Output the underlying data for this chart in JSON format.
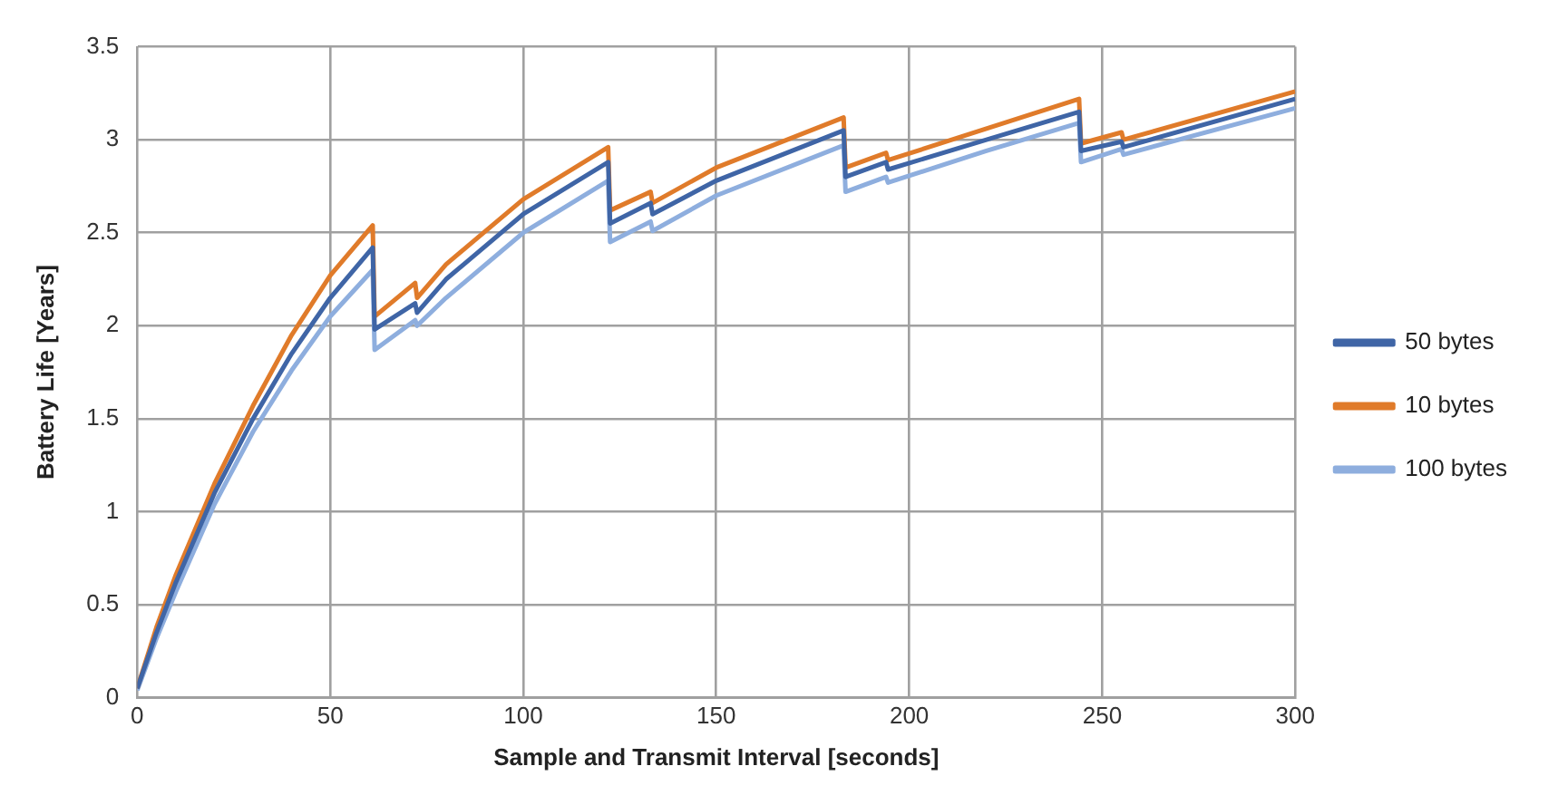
{
  "chart_data": {
    "type": "line",
    "xlabel": "Sample and Transmit Interval [seconds]",
    "ylabel": "Battery Life [Years]",
    "x": [
      0,
      5,
      10,
      20,
      30,
      40,
      50,
      61,
      61.5,
      72,
      72.5,
      80,
      100,
      122,
      122.5,
      133,
      133.5,
      150,
      183,
      183.5,
      194,
      194.5,
      220,
      244,
      244.5,
      255,
      255.5,
      300
    ],
    "series": [
      {
        "name": "50 bytes",
        "color": "#3f65a6",
        "values": [
          0.05,
          0.35,
          0.62,
          1.1,
          1.5,
          1.85,
          2.15,
          2.42,
          1.98,
          2.12,
          2.07,
          2.25,
          2.6,
          2.88,
          2.55,
          2.66,
          2.6,
          2.78,
          3.05,
          2.8,
          2.88,
          2.84,
          3.0,
          3.15,
          2.94,
          2.99,
          2.96,
          3.22
        ]
      },
      {
        "name": "10 bytes",
        "color": "#e07b2a",
        "values": [
          0.05,
          0.38,
          0.66,
          1.15,
          1.57,
          1.95,
          2.27,
          2.54,
          2.05,
          2.23,
          2.15,
          2.33,
          2.68,
          2.96,
          2.62,
          2.72,
          2.66,
          2.85,
          3.12,
          2.85,
          2.93,
          2.89,
          3.06,
          3.22,
          2.98,
          3.04,
          3.0,
          3.26
        ]
      },
      {
        "name": "100 bytes",
        "color": "#8eaede",
        "values": [
          0.04,
          0.32,
          0.57,
          1.04,
          1.43,
          1.76,
          2.05,
          2.3,
          1.87,
          2.03,
          2.0,
          2.15,
          2.5,
          2.78,
          2.45,
          2.56,
          2.51,
          2.7,
          2.97,
          2.72,
          2.8,
          2.77,
          2.94,
          3.09,
          2.88,
          2.95,
          2.92,
          3.17
        ]
      }
    ],
    "xlim": [
      0,
      300
    ],
    "xticks": [
      0,
      50,
      100,
      150,
      200,
      250,
      300
    ],
    "ylim": [
      0,
      3.5
    ],
    "yticks": [
      0,
      0.5,
      1,
      1.5,
      2,
      2.5,
      3,
      3.5
    ],
    "grid": true,
    "legend": "right",
    "marker": "none",
    "line_style": "solid"
  }
}
